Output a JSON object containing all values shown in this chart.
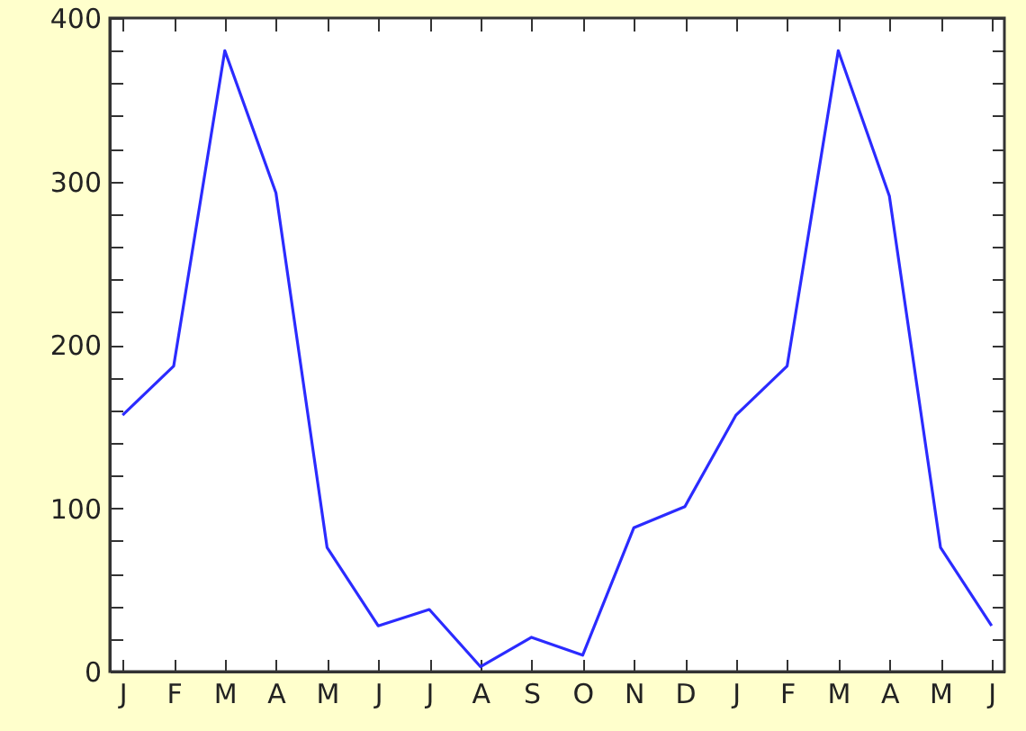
{
  "chart_data": {
    "type": "line",
    "categories": [
      "J",
      "F",
      "M",
      "A",
      "M",
      "J",
      "J",
      "A",
      "S",
      "O",
      "N",
      "D",
      "J",
      "F",
      "M",
      "A",
      "M",
      "J"
    ],
    "series": [
      {
        "color": "#2b2bff",
        "values": [
          157,
          187,
          380,
          293,
          76,
          28,
          38,
          3,
          21,
          10,
          88,
          101,
          157,
          187,
          380,
          291,
          76,
          28
        ]
      }
    ],
    "ylim": [
      0,
      400
    ],
    "yticks": [
      0,
      {
        "value": 20,
        "label": null
      },
      {
        "value": 40,
        "label": null
      },
      {
        "value": 60,
        "label": null
      },
      {
        "value": 80,
        "label": null
      },
      100,
      {
        "value": 120,
        "label": null
      },
      {
        "value": 140,
        "label": null
      },
      {
        "value": 160,
        "label": null
      },
      {
        "value": 180,
        "label": null
      },
      200,
      {
        "value": 220,
        "label": null
      },
      {
        "value": 240,
        "label": null
      },
      {
        "value": 260,
        "label": null
      },
      {
        "value": 280,
        "label": null
      },
      300,
      {
        "value": 320,
        "label": null
      },
      {
        "value": 340,
        "label": null
      },
      {
        "value": 360,
        "label": null
      },
      {
        "value": 380,
        "label": null
      },
      400
    ]
  }
}
